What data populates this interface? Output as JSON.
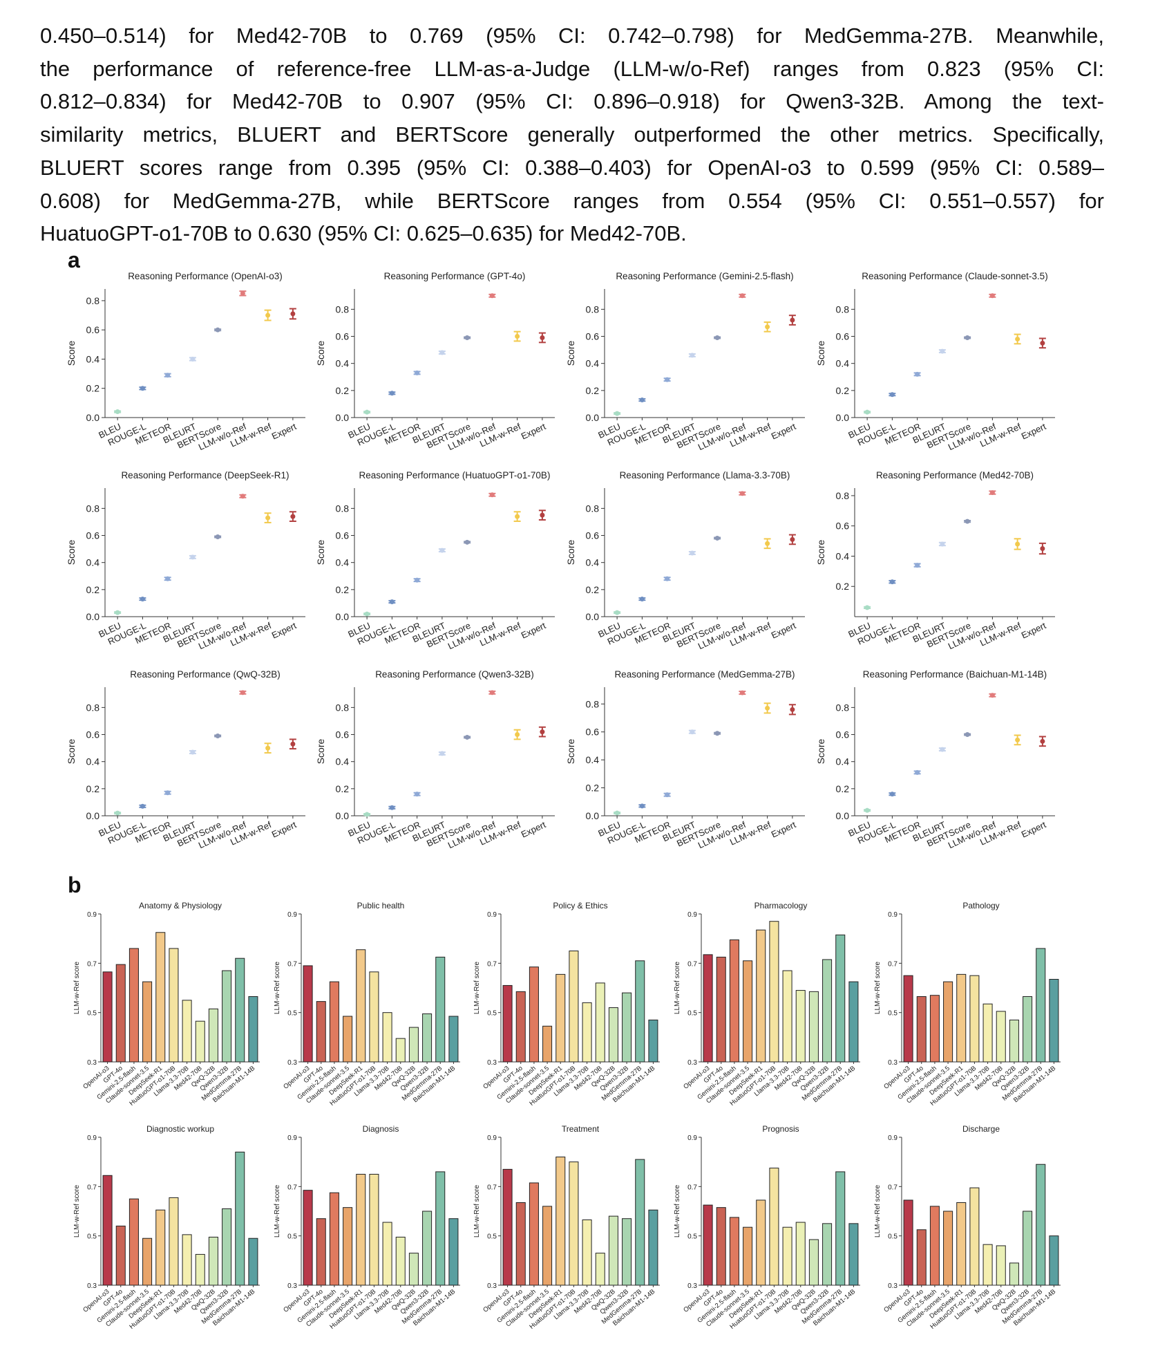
{
  "paragraph_lines": [
    "0.450–0.514) for Med42-70B to 0.769 (95% CI: 0.742–0.798) for MedGemma-27B. Meanwhile,",
    "the performance of reference-free LLM-as-a-Judge (LLM-w/o-Ref) ranges from 0.823 (95% CI:",
    "0.812–0.834) for Med42-70B to 0.907 (95% CI: 0.896–0.918) for Qwen3-32B. Among the text-",
    "similarity metrics, BLUERT and BERTScore generally outperformed the other metrics. Specifically,",
    "BLUERT scores range from 0.395 (95% CI: 0.388–0.403) for OpenAI-o3 to 0.599 (95% CI: 0.589–",
    "0.608) for MedGemma-27B, while BERTScore ranges from 0.554 (95% CI: 0.551–0.557) for",
    "HuatuoGPT-o1-70B to 0.630 (95% CI: 0.625–0.635) for Med42-70B."
  ],
  "panel_labels": {
    "a": "a",
    "b": "b"
  },
  "colors": {
    "metrics": [
      "#a8dcc4",
      "#6f8fc2",
      "#8fa9d6",
      "#c5d3ec",
      "#8b97b5",
      "#e17b7b",
      "#f2c94c",
      "#b24040"
    ],
    "models": [
      "#b8394a",
      "#c96355",
      "#e07a5f",
      "#e8a46a",
      "#f2c98a",
      "#f4e3a0",
      "#f5efb0",
      "#eaf0b6",
      "#cfe7b8",
      "#a8d5b0",
      "#7fbfa8",
      "#5a9fa0",
      "#4e7fab"
    ]
  },
  "chart_data": [
    {
      "type": "scatter",
      "ylabel": "Score",
      "ylim": [
        0,
        0.9
      ],
      "yticks": [
        0,
        0.2,
        0.4,
        0.6,
        0.8
      ],
      "categories": [
        "BLEU",
        "ROUGE-L",
        "METEOR",
        "BLEURT",
        "BERTScore",
        "LLM-w/o-Ref",
        "LLM-w-Ref",
        "Expert"
      ],
      "panels": [
        {
          "title": "Reasoning Performance (OpenAI-o3)",
          "values": [
            0.04,
            0.2,
            0.29,
            0.4,
            0.6,
            0.85,
            0.7,
            0.71
          ],
          "err": [
            0.005,
            0.008,
            0.01,
            0.01,
            0.005,
            0.015,
            0.035,
            0.035
          ],
          "ylim": [
            0,
            0.88
          ],
          "yticks": [
            0,
            0.2,
            0.4,
            0.6,
            0.8
          ]
        },
        {
          "title": "Reasoning Performance (GPT-4o)",
          "values": [
            0.04,
            0.18,
            0.33,
            0.48,
            0.59,
            0.9,
            0.6,
            0.59
          ],
          "err": [
            0.005,
            0.008,
            0.01,
            0.01,
            0.005,
            0.01,
            0.035,
            0.035
          ],
          "ylim": [
            0,
            0.95
          ],
          "yticks": [
            0,
            0.2,
            0.4,
            0.6,
            0.8
          ]
        },
        {
          "title": "Reasoning Performance (Gemini-2.5-flash)",
          "values": [
            0.03,
            0.13,
            0.28,
            0.46,
            0.59,
            0.9,
            0.67,
            0.72
          ],
          "err": [
            0.005,
            0.008,
            0.01,
            0.01,
            0.005,
            0.01,
            0.035,
            0.035
          ],
          "ylim": [
            0,
            0.95
          ],
          "yticks": [
            0,
            0.2,
            0.4,
            0.6,
            0.8
          ]
        },
        {
          "title": "Reasoning Performance (Claude-sonnet-3.5)",
          "values": [
            0.04,
            0.17,
            0.32,
            0.49,
            0.59,
            0.9,
            0.58,
            0.55
          ],
          "err": [
            0.005,
            0.008,
            0.01,
            0.01,
            0.005,
            0.01,
            0.035,
            0.035
          ],
          "ylim": [
            0,
            0.95
          ],
          "yticks": [
            0,
            0.2,
            0.4,
            0.6,
            0.8
          ]
        },
        {
          "title": "Reasoning Performance (DeepSeek-R1)",
          "values": [
            0.03,
            0.13,
            0.28,
            0.44,
            0.59,
            0.89,
            0.73,
            0.74
          ],
          "err": [
            0.005,
            0.008,
            0.01,
            0.01,
            0.005,
            0.01,
            0.035,
            0.035
          ],
          "ylim": [
            0,
            0.95
          ],
          "yticks": [
            0,
            0.2,
            0.4,
            0.6,
            0.8
          ]
        },
        {
          "title": "Reasoning Performance (HuatuoGPT-o1-70B)",
          "values": [
            0.02,
            0.11,
            0.27,
            0.49,
            0.55,
            0.9,
            0.74,
            0.75
          ],
          "err": [
            0.005,
            0.008,
            0.01,
            0.01,
            0.005,
            0.01,
            0.035,
            0.035
          ],
          "ylim": [
            0,
            0.95
          ],
          "yticks": [
            0,
            0.2,
            0.4,
            0.6,
            0.8
          ]
        },
        {
          "title": "Reasoning Performance (Llama-3.3-70B)",
          "values": [
            0.03,
            0.13,
            0.28,
            0.47,
            0.58,
            0.91,
            0.54,
            0.57
          ],
          "err": [
            0.005,
            0.008,
            0.01,
            0.01,
            0.005,
            0.01,
            0.035,
            0.035
          ],
          "ylim": [
            0,
            0.95
          ],
          "yticks": [
            0,
            0.2,
            0.4,
            0.6,
            0.8
          ]
        },
        {
          "title": "Reasoning Performance (Med42-70B)",
          "values": [
            0.06,
            0.23,
            0.34,
            0.48,
            0.63,
            0.82,
            0.48,
            0.45
          ],
          "err": [
            0.005,
            0.008,
            0.01,
            0.01,
            0.005,
            0.01,
            0.035,
            0.035
          ],
          "ylim": [
            0,
            0.85
          ],
          "yticks": [
            0.2,
            0.4,
            0.6,
            0.8
          ]
        },
        {
          "title": "Reasoning Performance (QwQ-32B)",
          "values": [
            0.02,
            0.07,
            0.17,
            0.47,
            0.59,
            0.91,
            0.5,
            0.53
          ],
          "err": [
            0.005,
            0.008,
            0.01,
            0.01,
            0.005,
            0.01,
            0.035,
            0.035
          ],
          "ylim": [
            0,
            0.95
          ],
          "yticks": [
            0,
            0.2,
            0.4,
            0.6,
            0.8
          ]
        },
        {
          "title": "Reasoning Performance (Qwen3-32B)",
          "values": [
            0.01,
            0.06,
            0.16,
            0.46,
            0.58,
            0.91,
            0.6,
            0.62
          ],
          "err": [
            0.005,
            0.008,
            0.01,
            0.01,
            0.005,
            0.01,
            0.035,
            0.035
          ],
          "ylim": [
            0,
            0.95
          ],
          "yticks": [
            0,
            0.2,
            0.4,
            0.6,
            0.8
          ]
        },
        {
          "title": "Reasoning Performance (MedGemma-27B)",
          "values": [
            0.02,
            0.07,
            0.15,
            0.6,
            0.59,
            0.88,
            0.77,
            0.76
          ],
          "err": [
            0.005,
            0.008,
            0.01,
            0.01,
            0.005,
            0.01,
            0.035,
            0.035
          ],
          "ylim": [
            0,
            0.92
          ],
          "yticks": [
            0,
            0.2,
            0.4,
            0.6,
            0.8
          ]
        },
        {
          "title": "Reasoning Performance (Baichuan-M1-14B)",
          "values": [
            0.04,
            0.16,
            0.32,
            0.49,
            0.6,
            0.89,
            0.56,
            0.55
          ],
          "err": [
            0.005,
            0.008,
            0.01,
            0.01,
            0.005,
            0.01,
            0.035,
            0.035
          ],
          "ylim": [
            0,
            0.95
          ],
          "yticks": [
            0,
            0.2,
            0.4,
            0.6,
            0.8
          ]
        }
      ]
    },
    {
      "type": "bar",
      "ylabel": "LLM-w-Ref score",
      "ylim": [
        0.3,
        0.9
      ],
      "yticks": [
        0.3,
        0.5,
        0.7,
        0.9
      ],
      "categories": [
        "OpenAI-o3",
        "GPT-4o",
        "Gemini-2.5-flash",
        "Claude-sonnet-3.5",
        "DeepSeek-R1",
        "HuatuoGPT-o1-70B",
        "Llama-3.3-70B",
        "Med42-70B",
        "QwQ-32B",
        "Qwen3-32B",
        "MedGemma-27B",
        "Baichuan-M1-14B"
      ],
      "panels": [
        {
          "title": "Anatomy & Physiology",
          "values": [
            0.665,
            0.695,
            0.76,
            0.625,
            0.825,
            0.76,
            0.55,
            0.465,
            0.515,
            0.67,
            0.72,
            0.565
          ]
        },
        {
          "title": "Public health",
          "values": [
            0.69,
            0.545,
            0.625,
            0.485,
            0.755,
            0.665,
            0.5,
            0.395,
            0.44,
            0.495,
            0.725,
            0.485
          ]
        },
        {
          "title": "Policy & Ethics",
          "values": [
            0.61,
            0.585,
            0.685,
            0.445,
            0.655,
            0.75,
            0.54,
            0.62,
            0.52,
            0.58,
            0.71,
            0.47
          ]
        },
        {
          "title": "Pharmacology",
          "values": [
            0.735,
            0.725,
            0.795,
            0.71,
            0.835,
            0.87,
            0.67,
            0.59,
            0.585,
            0.715,
            0.815,
            0.625
          ]
        },
        {
          "title": "Pathology",
          "values": [
            0.65,
            0.565,
            0.57,
            0.625,
            0.655,
            0.65,
            0.535,
            0.505,
            0.47,
            0.565,
            0.76,
            0.635
          ]
        },
        {
          "title": "Diagnostic workup",
          "values": [
            0.745,
            0.54,
            0.65,
            0.49,
            0.605,
            0.655,
            0.505,
            0.425,
            0.495,
            0.61,
            0.84,
            0.49
          ]
        },
        {
          "title": "Diagnosis",
          "values": [
            0.685,
            0.57,
            0.675,
            0.615,
            0.75,
            0.75,
            0.555,
            0.495,
            0.43,
            0.6,
            0.76,
            0.57
          ]
        },
        {
          "title": "Treatment",
          "values": [
            0.77,
            0.635,
            0.715,
            0.62,
            0.82,
            0.8,
            0.565,
            0.43,
            0.58,
            0.57,
            0.81,
            0.605
          ]
        },
        {
          "title": "Prognosis",
          "values": [
            0.625,
            0.615,
            0.575,
            0.535,
            0.645,
            0.775,
            0.535,
            0.555,
            0.485,
            0.55,
            0.76,
            0.55
          ]
        },
        {
          "title": "Discharge",
          "values": [
            0.645,
            0.525,
            0.62,
            0.6,
            0.635,
            0.695,
            0.465,
            0.46,
            0.39,
            0.6,
            0.79,
            0.5
          ]
        }
      ]
    }
  ]
}
